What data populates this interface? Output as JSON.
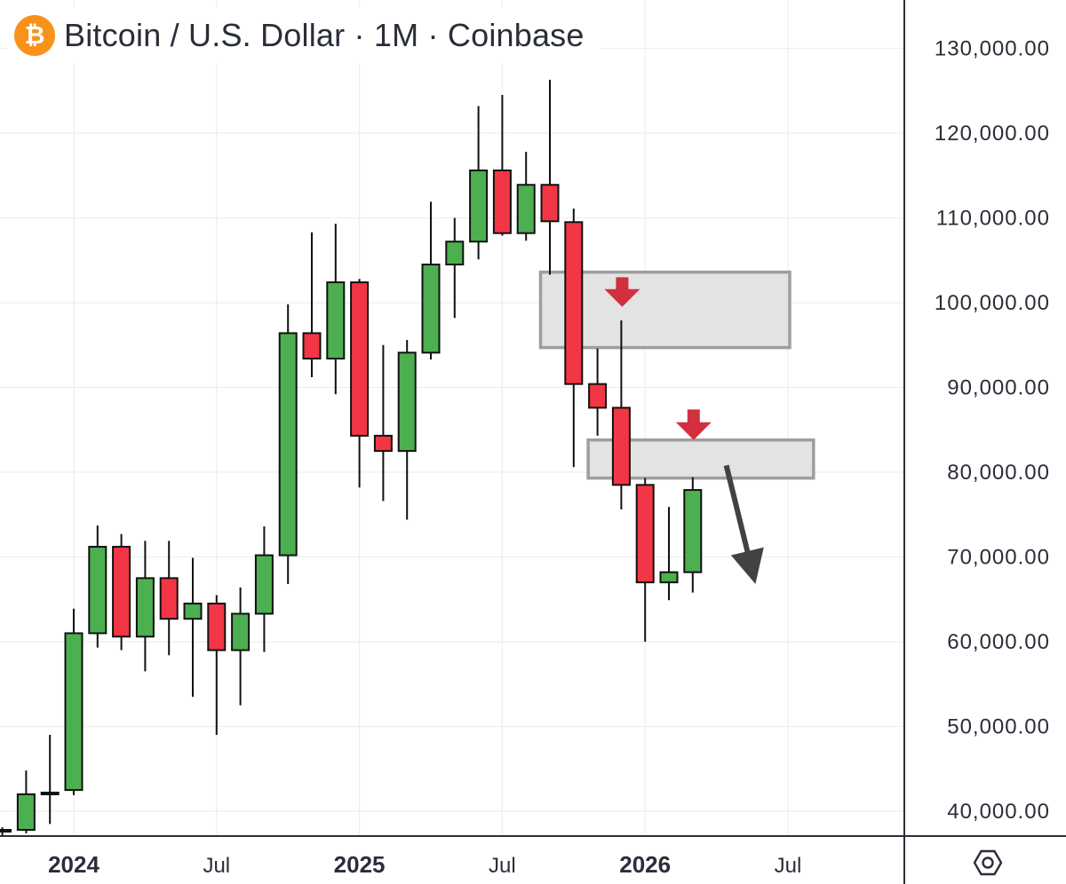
{
  "header": {
    "title": "Bitcoin / U.S. Dollar · 1M · Coinbase",
    "logo_glyph": "₿",
    "logo_color": "#f7931a"
  },
  "colors": {
    "up": "#4caf50",
    "down": "#f23645",
    "zone_fill": "#e3e3e3",
    "zone_stroke": "#9e9e9e",
    "arrow_red": "#d32f3f",
    "arrow_dark": "#424242",
    "grid": "#eeeeee"
  },
  "chart_data": {
    "type": "candlestick",
    "title": "Bitcoin / U.S. Dollar · 1M · Coinbase",
    "interval": "1M",
    "exchange": "Coinbase",
    "ylim": [
      37000,
      136000
    ],
    "y_ticks": [
      {
        "value": 40000,
        "label": "40,000.00"
      },
      {
        "value": 50000,
        "label": "50,000.00"
      },
      {
        "value": 60000,
        "label": "60,000.00"
      },
      {
        "value": 70000,
        "label": "70,000.00"
      },
      {
        "value": 80000,
        "label": "80,000.00"
      },
      {
        "value": 90000,
        "label": "90,000.00"
      },
      {
        "value": 100000,
        "label": "100,000.00"
      },
      {
        "value": 110000,
        "label": "110,000.00"
      },
      {
        "value": 120000,
        "label": "120,000.00"
      },
      {
        "value": 130000,
        "label": "130,000.00"
      }
    ],
    "x_ticks": [
      {
        "month": "2024-01",
        "label": "2024",
        "bold": true
      },
      {
        "month": "2024-07",
        "label": "Jul",
        "bold": false
      },
      {
        "month": "2025-01",
        "label": "2025",
        "bold": true
      },
      {
        "month": "2025-07",
        "label": "Jul",
        "bold": false
      },
      {
        "month": "2026-01",
        "label": "2026",
        "bold": true
      },
      {
        "month": "2026-07",
        "label": "Jul",
        "bold": false
      }
    ],
    "candles": [
      {
        "month": "2023-10",
        "open": 37600,
        "high": 38100,
        "low": 37000,
        "close": 37800
      },
      {
        "month": "2023-11",
        "open": 37800,
        "high": 44800,
        "low": 37400,
        "close": 42000
      },
      {
        "month": "2023-12",
        "open": 42000,
        "high": 49000,
        "low": 38500,
        "close": 42200
      },
      {
        "month": "2024-01",
        "open": 42500,
        "high": 63900,
        "low": 41900,
        "close": 61000
      },
      {
        "month": "2024-02",
        "open": 61000,
        "high": 73700,
        "low": 59300,
        "close": 71200
      },
      {
        "month": "2024-03",
        "open": 71200,
        "high": 72700,
        "low": 59000,
        "close": 60600
      },
      {
        "month": "2024-04",
        "open": 60600,
        "high": 71900,
        "low": 56500,
        "close": 67500
      },
      {
        "month": "2024-05",
        "open": 67500,
        "high": 71900,
        "low": 58400,
        "close": 62700
      },
      {
        "month": "2024-06",
        "open": 62700,
        "high": 69900,
        "low": 53500,
        "close": 64500
      },
      {
        "month": "2024-07",
        "open": 64500,
        "high": 65500,
        "low": 49000,
        "close": 59000
      },
      {
        "month": "2024-08",
        "open": 59000,
        "high": 66400,
        "low": 52500,
        "close": 63300
      },
      {
        "month": "2024-09",
        "open": 63300,
        "high": 73600,
        "low": 58800,
        "close": 70200
      },
      {
        "month": "2024-10",
        "open": 70200,
        "high": 99800,
        "low": 66800,
        "close": 96400
      },
      {
        "month": "2024-11",
        "open": 96400,
        "high": 108300,
        "low": 91200,
        "close": 93400
      },
      {
        "month": "2024-12",
        "open": 93400,
        "high": 109300,
        "low": 89200,
        "close": 102400
      },
      {
        "month": "2025-01",
        "open": 102400,
        "high": 102800,
        "low": 78200,
        "close": 84300
      },
      {
        "month": "2025-02",
        "open": 84300,
        "high": 95000,
        "low": 76600,
        "close": 82500
      },
      {
        "month": "2025-03",
        "open": 82500,
        "high": 95600,
        "low": 74400,
        "close": 94100
      },
      {
        "month": "2025-04",
        "open": 94100,
        "high": 111900,
        "low": 93300,
        "close": 104500
      },
      {
        "month": "2025-05",
        "open": 104500,
        "high": 110000,
        "low": 98200,
        "close": 107200
      },
      {
        "month": "2025-06",
        "open": 107200,
        "high": 123200,
        "low": 105100,
        "close": 115600
      },
      {
        "month": "2025-07",
        "open": 115600,
        "high": 124500,
        "low": 107900,
        "close": 108200
      },
      {
        "month": "2025-08",
        "open": 108200,
        "high": 117800,
        "low": 107300,
        "close": 113900
      },
      {
        "month": "2025-09",
        "open": 113900,
        "high": 126300,
        "low": 103300,
        "close": 109600
      },
      {
        "month": "2025-10",
        "open": 109500,
        "high": 111100,
        "low": 80600,
        "close": 90400
      },
      {
        "month": "2025-11",
        "open": 90400,
        "high": 94600,
        "low": 84300,
        "close": 87600
      },
      {
        "month": "2025-12",
        "open": 87600,
        "high": 97900,
        "low": 75600,
        "close": 78500
      },
      {
        "month": "2026-01",
        "open": 78500,
        "high": 79300,
        "low": 60000,
        "close": 67000
      },
      {
        "month": "2026-02",
        "open": 67000,
        "high": 75900,
        "low": 64900,
        "close": 68200
      },
      {
        "month": "2026-03",
        "open": 68200,
        "high": 79400,
        "low": 65800,
        "close": 77900
      }
    ],
    "zones": [
      {
        "start": "2025-09",
        "end": "2026-07",
        "low": 94700,
        "high": 103600
      },
      {
        "start": "2025-11",
        "end": "2026-08",
        "low": 79300,
        "high": 83800
      }
    ],
    "annotations": [
      {
        "type": "down-arrow",
        "month": "2025-12",
        "top": 103000,
        "tip": 99500,
        "color": "red"
      },
      {
        "type": "down-arrow",
        "month": "2026-03",
        "top": 87400,
        "tip": 83800,
        "color": "red"
      },
      {
        "type": "diagonal-arrow",
        "from_month": "2026-04",
        "from_price": 80800,
        "to_month": "2026-05",
        "to_price": 66800,
        "color": "dark"
      }
    ]
  }
}
